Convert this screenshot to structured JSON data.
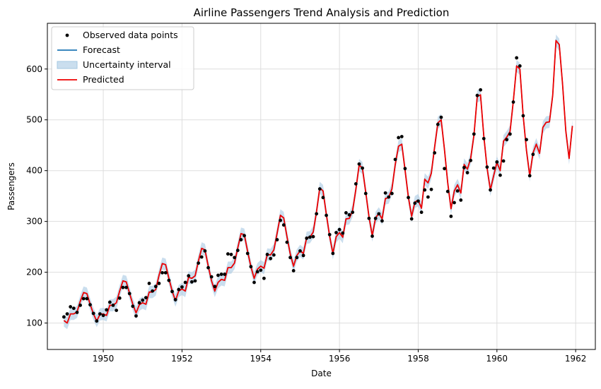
{
  "chart_data": {
    "type": "line",
    "title": "Airline Passengers Trend Analysis and Prediction",
    "xlabel": "Date",
    "ylabel": "Passengers",
    "xlim": [
      1948.58,
      1962.5
    ],
    "ylim": [
      48,
      690
    ],
    "x_ticks": [
      1950,
      1952,
      1954,
      1956,
      1958,
      1960,
      1962
    ],
    "x_tick_labels": [
      "1950",
      "1952",
      "1954",
      "1956",
      "1958",
      "1960",
      "1962"
    ],
    "y_ticks": [
      100,
      200,
      300,
      400,
      500,
      600
    ],
    "y_tick_labels": [
      "100",
      "200",
      "300",
      "400",
      "500",
      "600"
    ],
    "grid": true,
    "legend_position": "top-left",
    "legend": [
      {
        "label": "Observed data points",
        "kind": "marker",
        "color": "#000000"
      },
      {
        "label": "Forecast",
        "kind": "line",
        "color": "#1f77b4"
      },
      {
        "label": "Uncertainty interval",
        "kind": "patch",
        "color": "#a6c8e2"
      },
      {
        "label": "Predicted",
        "kind": "line",
        "color": "#ee0000"
      }
    ],
    "colors": {
      "observed": "#000000",
      "forecast": "#1f77b4",
      "interval": "#a6c8e2",
      "predicted": "#ee0000",
      "grid": "#dddddd"
    },
    "observed": {
      "start": "1949-01",
      "frequency": "monthly",
      "values": [
        112,
        118,
        132,
        129,
        121,
        135,
        148,
        148,
        136,
        119,
        104,
        118,
        115,
        126,
        141,
        135,
        125,
        149,
        170,
        170,
        158,
        133,
        114,
        140,
        145,
        150,
        178,
        163,
        172,
        178,
        199,
        199,
        184,
        162,
        146,
        166,
        171,
        180,
        193,
        181,
        183,
        218,
        230,
        242,
        209,
        191,
        172,
        194,
        196,
        196,
        236,
        235,
        229,
        243,
        264,
        272,
        237,
        211,
        180,
        201,
        204,
        188,
        235,
        227,
        234,
        264,
        302,
        293,
        259,
        229,
        203,
        229,
        242,
        233,
        267,
        269,
        270,
        315,
        364,
        347,
        312,
        274,
        237,
        278,
        284,
        277,
        317,
        313,
        318,
        374,
        413,
        405,
        355,
        306,
        271,
        306,
        315,
        301,
        356,
        348,
        355,
        422,
        465,
        467,
        404,
        347,
        305,
        336,
        340,
        318,
        362,
        348,
        363,
        435,
        491,
        505,
        404,
        359,
        310,
        337,
        360,
        342,
        406,
        396,
        420,
        472,
        548,
        559,
        463,
        407,
        362,
        405,
        417,
        391,
        419,
        461,
        472,
        535,
        622,
        606,
        508,
        461,
        390,
        432
      ]
    },
    "predicted": {
      "start": "1949-01",
      "frequency": "monthly",
      "values": [
        105,
        100,
        118,
        118,
        122,
        143,
        160,
        158,
        137,
        118,
        104,
        117,
        118,
        115,
        135,
        135,
        140,
        163,
        183,
        181,
        159,
        137,
        120,
        136,
        140,
        137,
        161,
        161,
        166,
        194,
        217,
        215,
        188,
        163,
        144,
        163,
        167,
        163,
        190,
        188,
        193,
        222,
        247,
        244,
        212,
        183,
        163,
        180,
        186,
        184,
        209,
        209,
        218,
        248,
        276,
        274,
        241,
        211,
        188,
        206,
        212,
        208,
        235,
        234,
        244,
        277,
        312,
        307,
        270,
        236,
        212,
        233,
        242,
        237,
        268,
        269,
        279,
        319,
        366,
        360,
        314,
        271,
        237,
        270,
        278,
        269,
        305,
        306,
        321,
        363,
        411,
        405,
        358,
        309,
        272,
        307,
        316,
        305,
        345,
        347,
        364,
        412,
        448,
        452,
        401,
        348,
        310,
        338,
        342,
        326,
        383,
        376,
        395,
        446,
        494,
        500,
        442,
        376,
        325,
        360,
        372,
        356,
        412,
        403,
        424,
        470,
        546,
        549,
        468,
        405,
        362,
        390,
        416,
        400,
        458,
        466,
        477,
        537,
        606,
        600,
        508,
        440,
        390,
        435,
        452,
        434,
        485,
        495,
        496,
        548,
        656,
        648,
        571,
        478,
        424,
        488
      ]
    },
    "interval_halfwidth": 12
  }
}
